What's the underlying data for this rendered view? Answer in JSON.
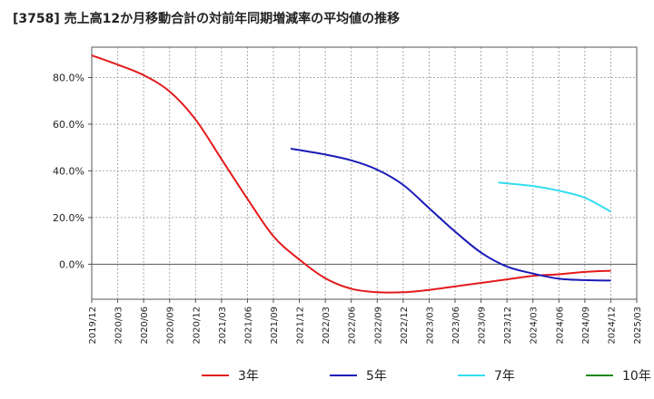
{
  "chart_data": {
    "type": "line",
    "title": "[3758]  売上高12か月移動合計の対前年同期増減率の平均値の推移",
    "xlabel": "",
    "ylabel": "",
    "y_unit": "%",
    "ylim": [
      -15,
      93
    ],
    "y_ticks": [
      0,
      20,
      40,
      60,
      80
    ],
    "y_tick_labels": [
      "0.0%",
      "20.0%",
      "40.0%",
      "60.0%",
      "80.0%"
    ],
    "x_tick_labels": [
      "2019/12",
      "2020/03",
      "2020/06",
      "2020/09",
      "2020/12",
      "2021/03",
      "2021/06",
      "2021/09",
      "2021/12",
      "2022/03",
      "2022/06",
      "2022/09",
      "2022/12",
      "2023/03",
      "2023/06",
      "2023/09",
      "2023/12",
      "2024/03",
      "2024/06",
      "2024/09",
      "2024/12",
      "2025/03"
    ],
    "grid": true,
    "legend_position": "bottom",
    "series": [
      {
        "name": "3年",
        "color": "#e31a1c",
        "points": [
          [
            "2019/12",
            89.5
          ],
          [
            "2020/03",
            85.5
          ],
          [
            "2020/06",
            81
          ],
          [
            "2020/09",
            74
          ],
          [
            "2020/12",
            62
          ],
          [
            "2021/03",
            45
          ],
          [
            "2021/06",
            28
          ],
          [
            "2021/09",
            12
          ],
          [
            "2021/12",
            2
          ],
          [
            "2022/03",
            -6
          ],
          [
            "2022/06",
            -10.5
          ],
          [
            "2022/09",
            -12
          ],
          [
            "2022/12",
            -12
          ],
          [
            "2023/03",
            -11
          ],
          [
            "2023/06",
            -9.5
          ],
          [
            "2023/09",
            -8
          ],
          [
            "2023/12",
            -6.5
          ],
          [
            "2024/03",
            -5
          ],
          [
            "2024/06",
            -4.3
          ],
          [
            "2024/09",
            -3.3
          ],
          [
            "2024/12",
            -2.8
          ]
        ]
      },
      {
        "name": "5年",
        "color": "#1a1ab8",
        "points": [
          [
            "2021/11",
            49.5
          ],
          [
            "2022/03",
            47
          ],
          [
            "2022/06",
            44.5
          ],
          [
            "2022/09",
            40.5
          ],
          [
            "2022/12",
            34
          ],
          [
            "2023/03",
            24
          ],
          [
            "2023/06",
            14
          ],
          [
            "2023/09",
            5
          ],
          [
            "2023/12",
            -1
          ],
          [
            "2024/03",
            -4
          ],
          [
            "2024/06",
            -6.2
          ],
          [
            "2024/09",
            -6.8
          ],
          [
            "2024/12",
            -7
          ]
        ]
      },
      {
        "name": "7年",
        "color": "#33ddee",
        "points": [
          [
            "2023/11",
            35
          ],
          [
            "2024/03",
            33.5
          ],
          [
            "2024/06",
            31.5
          ],
          [
            "2024/09",
            28.5
          ],
          [
            "2024/12",
            22.5
          ]
        ]
      },
      {
        "name": "10年",
        "color": "#1a8a1a",
        "points": []
      }
    ]
  }
}
